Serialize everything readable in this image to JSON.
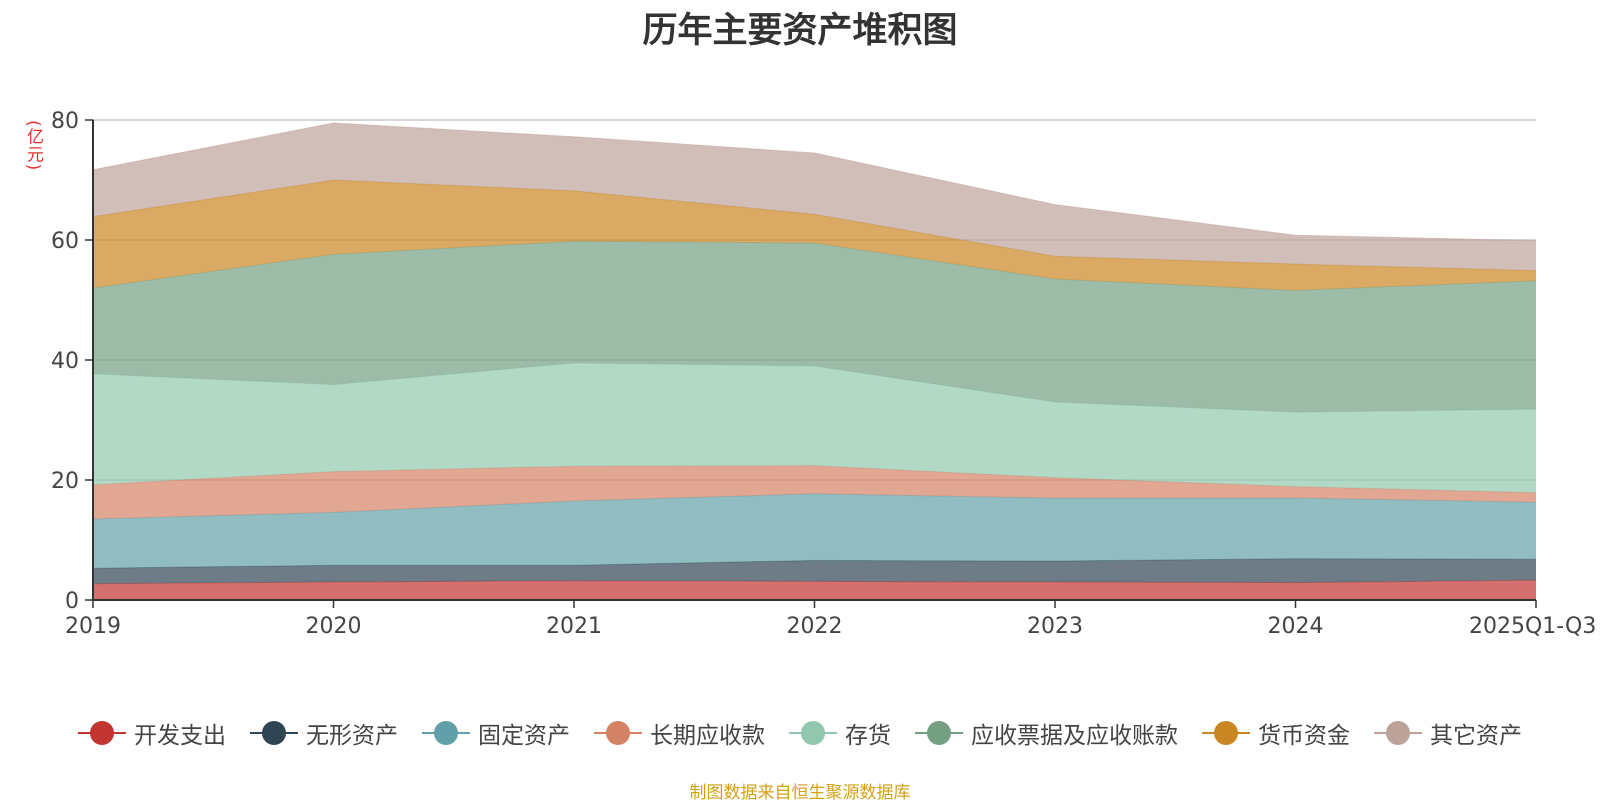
{
  "chart_data": {
    "type": "area",
    "stacked": true,
    "title": "历年主要资产堆积图",
    "ylabel": "(亿元)",
    "ylim": [
      0,
      80
    ],
    "yticks": [
      0,
      20,
      40,
      60,
      80
    ],
    "categories": [
      "2019",
      "2020",
      "2021",
      "2022",
      "2023",
      "2024",
      "2025Q1-Q3"
    ],
    "series": [
      {
        "name": "开发支出",
        "color": "#c23531",
        "values": [
          2.7,
          3.0,
          3.2,
          3.1,
          3.0,
          2.9,
          3.3
        ]
      },
      {
        "name": "无形资产",
        "color": "#2f4554",
        "values": [
          2.6,
          2.8,
          2.6,
          3.5,
          3.5,
          4.0,
          3.5
        ]
      },
      {
        "name": "固定资产",
        "color": "#61a0a8",
        "values": [
          8.2,
          8.8,
          10.7,
          11.1,
          10.5,
          10.1,
          9.5
        ]
      },
      {
        "name": "长期应收款",
        "color": "#d48265",
        "values": [
          5.7,
          6.8,
          5.8,
          4.7,
          3.4,
          1.9,
          1.6
        ]
      },
      {
        "name": "存货",
        "color": "#91c7ae",
        "values": [
          18.5,
          14.5,
          17.2,
          16.6,
          12.6,
          12.4,
          13.9
        ]
      },
      {
        "name": "应收票据及应收账款",
        "color": "#749f83",
        "values": [
          14.3,
          21.7,
          20.3,
          20.5,
          20.5,
          20.3,
          21.4
        ]
      },
      {
        "name": "货币资金",
        "color": "#ca8622",
        "values": [
          11.9,
          12.4,
          8.4,
          4.8,
          3.8,
          4.4,
          1.7
        ]
      },
      {
        "name": "其它资产",
        "color": "#bda29a",
        "values": [
          7.8,
          9.5,
          9.0,
          10.2,
          8.6,
          4.8,
          5.0
        ]
      }
    ]
  },
  "source_note": "制图数据来自恒生聚源数据库"
}
